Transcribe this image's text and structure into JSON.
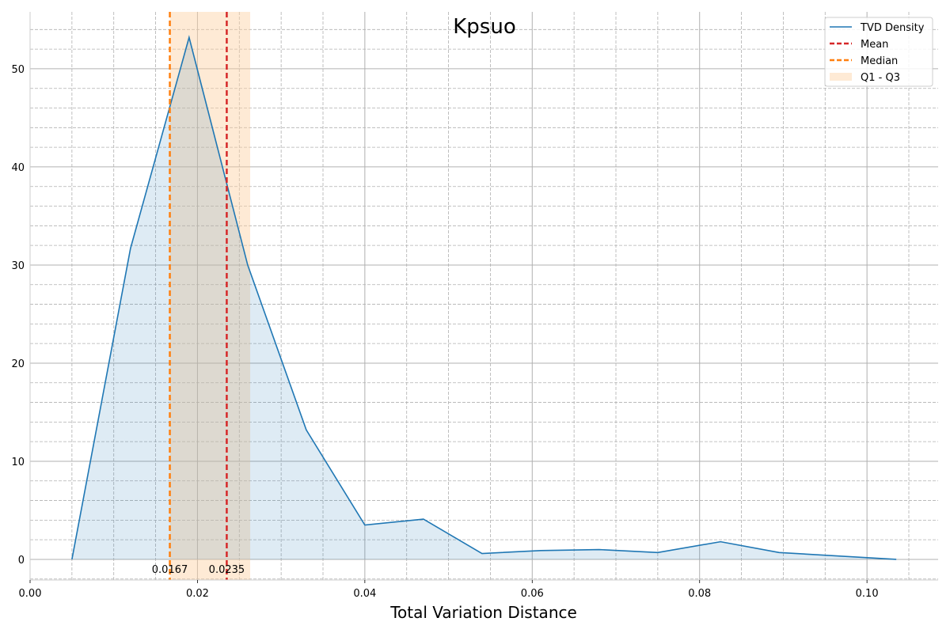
{
  "chart_data": {
    "type": "area",
    "title": "Kpsuo",
    "xlabel": "Total Variation Distance",
    "ylabel": "",
    "xlim": [
      0.0,
      0.1085
    ],
    "ylim": [
      -2.1,
      55.8
    ],
    "x_major_ticks": [
      0.0,
      0.02,
      0.04,
      0.06,
      0.08,
      0.1
    ],
    "x_tick_labels": [
      "0.00",
      "0.02",
      "0.04",
      "0.06",
      "0.08",
      "0.10"
    ],
    "y_major_ticks": [
      0,
      10,
      20,
      30,
      40,
      50
    ],
    "y_tick_labels": [
      "0",
      "10",
      "20",
      "30",
      "40",
      "50"
    ],
    "grid": true,
    "legend_position": "top-right",
    "series": [
      {
        "name": "TVD Density",
        "color": "#1f77b4",
        "x": [
          0.005,
          0.012,
          0.019,
          0.026,
          0.033,
          0.04,
          0.047,
          0.054,
          0.061,
          0.068,
          0.075,
          0.0825,
          0.0895,
          0.1035
        ],
        "y": [
          0.0,
          31.7,
          53.2,
          30.0,
          13.2,
          3.5,
          4.1,
          0.6,
          0.9,
          1.0,
          0.7,
          1.8,
          0.7,
          0.0
        ]
      }
    ],
    "mean": {
      "name": "Mean",
      "value": 0.0235,
      "label": "0.0235",
      "color": "#d62728"
    },
    "median": {
      "name": "Median",
      "value": 0.0167,
      "label": "0.0167",
      "color": "#ff7f0e"
    },
    "iqr": {
      "name": "Q1 - Q3",
      "q1": 0.0167,
      "q3": 0.0263,
      "color": "#fdd0a2"
    }
  }
}
